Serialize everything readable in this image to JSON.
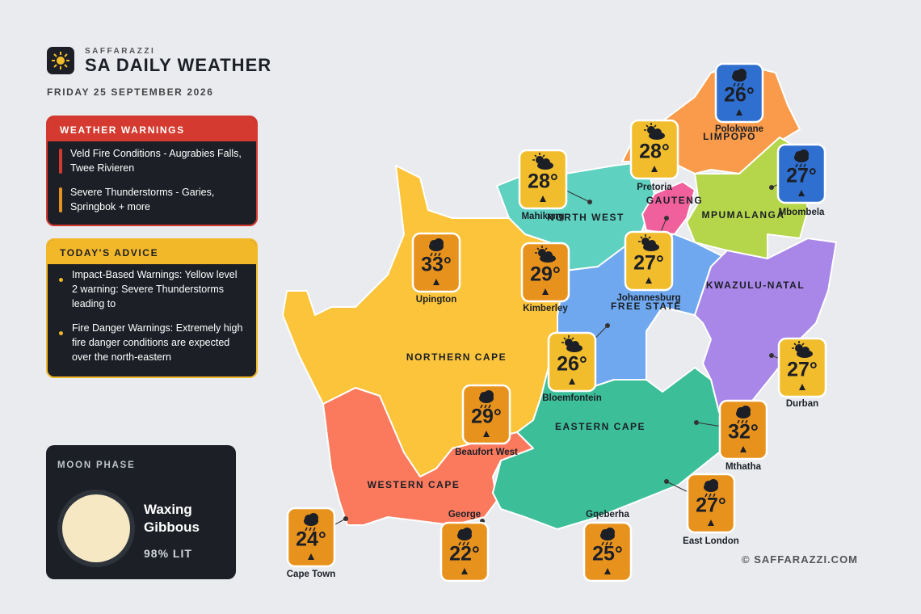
{
  "header": {
    "brand": "SAFFARAZZI",
    "title": "SA DAILY WEATHER",
    "date": "FRIDAY 25 SEPTEMBER 2026"
  },
  "warnings": {
    "title": "WEATHER WARNINGS",
    "items": [
      {
        "text": "Veld Fire Conditions - Augrabies Falls, Twee Rivieren",
        "color": "#d43a2f"
      },
      {
        "text": "Severe Thunderstorms - Garies, Springbok + more",
        "color": "#e8921e"
      }
    ]
  },
  "advice": {
    "title": "TODAY'S ADVICE",
    "items": [
      "Impact-Based Warnings: Yellow level 2 warning: Severe Thunderstorms leading to",
      "Fire Danger Warnings: Extremely high fire danger conditions are expected over the north-eastern"
    ]
  },
  "moon": {
    "title": "MOON PHASE",
    "phase": "Waxing Gibbous",
    "lit": "98% LIT"
  },
  "provinces": [
    "LIMPOPO",
    "MPUMALANGA",
    "GAUTENG",
    "NORTH WEST",
    "FREE STATE",
    "KWAZULU-NATAL",
    "NORTHERN CAPE",
    "EASTERN CAPE",
    "WESTERN CAPE"
  ],
  "cities": [
    {
      "name": "Polokwane",
      "temp": "26°",
      "icon": "rain",
      "color": "#2f6fcf"
    },
    {
      "name": "Pretoria",
      "temp": "28°",
      "icon": "sun-cloud",
      "color": "#f2bd2c"
    },
    {
      "name": "Mbombela",
      "temp": "27°",
      "icon": "rain",
      "color": "#2f6fcf"
    },
    {
      "name": "Mahikeng",
      "temp": "28°",
      "icon": "sun-cloud",
      "color": "#f2bd2c"
    },
    {
      "name": "Upington",
      "temp": "33°",
      "icon": "rain",
      "color": "#e8921e"
    },
    {
      "name": "Kimberley",
      "temp": "29°",
      "icon": "sun-cloud",
      "color": "#e8921e"
    },
    {
      "name": "Johannesburg",
      "temp": "27°",
      "icon": "sun-cloud",
      "color": "#f2bd2c"
    },
    {
      "name": "Bloemfontein",
      "temp": "26°",
      "icon": "sun-cloud",
      "color": "#f2bd2c"
    },
    {
      "name": "Durban",
      "temp": "27°",
      "icon": "sun-cloud",
      "color": "#f2bd2c"
    },
    {
      "name": "Beaufort West",
      "temp": "29°",
      "icon": "rain",
      "color": "#e8921e"
    },
    {
      "name": "Mthatha",
      "temp": "32°",
      "icon": "rain",
      "color": "#e8921e"
    },
    {
      "name": "East London",
      "temp": "27°",
      "icon": "rain",
      "color": "#e8921e"
    },
    {
      "name": "Cape Town",
      "temp": "24°",
      "icon": "rain",
      "color": "#e8921e"
    },
    {
      "name": "George",
      "temp": "22°",
      "icon": "rain",
      "color": "#e8921e"
    },
    {
      "name": "Gqeberha",
      "temp": "25°",
      "icon": "rain",
      "color": "#e8921e"
    }
  ],
  "footer": {
    "credit": "© SAFFARAZZI.COM"
  }
}
